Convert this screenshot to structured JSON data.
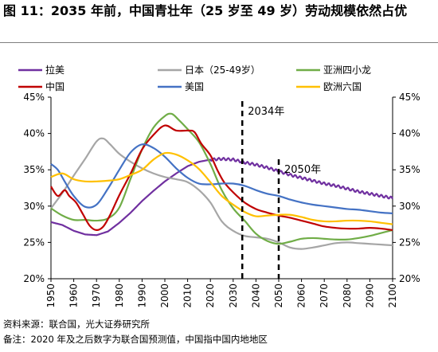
{
  "title": "图 11：2035 年前，中国青壮年（25 岁至 49 岁）劳动规模依然占优",
  "source": "资料来源：联合国，光大证券研究所",
  "note": "备注：2020 年及之后数字为联合国预测值，中国指中国内地地区",
  "colors": {
    "latin_america": "#7030a0",
    "japan": "#a6a6a6",
    "asia_four_dragons": "#70ad47",
    "china": "#c00000",
    "usa": "#4472c4",
    "euro_six": "#ffc000"
  },
  "chart_data": {
    "type": "line",
    "xlabel": "",
    "ylabel": "",
    "xlim": [
      1950,
      2100
    ],
    "ylim": [
      0.2,
      0.45
    ],
    "x_ticks": [
      "1950",
      "1960",
      "1970",
      "1980",
      "1990",
      "2000",
      "2010",
      "2020",
      "2030",
      "2040",
      "2050",
      "2060",
      "2070",
      "2080",
      "2090",
      "2100"
    ],
    "y_ticks_left": [
      "45%",
      "40%",
      "35%",
      "30%",
      "25%",
      "20%"
    ],
    "y_ticks_right": [
      "45%",
      "40%",
      "35%",
      "30%",
      "25%",
      "20%"
    ],
    "legend_position": "top",
    "annotations": [
      {
        "label": "2034年",
        "x": 2034,
        "style": "dashed-vertical"
      },
      {
        "label": "2050年",
        "x": 2050,
        "style": "dashed-vertical"
      }
    ],
    "series": [
      {
        "name": "拉美",
        "key": "latin_america",
        "points": [
          [
            1950,
            0.278
          ],
          [
            1955,
            0.274
          ],
          [
            1960,
            0.266
          ],
          [
            1965,
            0.261
          ],
          [
            1970,
            0.26
          ],
          [
            1975,
            0.265
          ],
          [
            1980,
            0.277
          ],
          [
            1985,
            0.291
          ],
          [
            1990,
            0.307
          ],
          [
            1995,
            0.321
          ],
          [
            2000,
            0.334
          ],
          [
            2005,
            0.345
          ],
          [
            2010,
            0.355
          ],
          [
            2015,
            0.361
          ],
          [
            2020,
            0.364
          ],
          [
            2025,
            0.365
          ],
          [
            2030,
            0.364
          ],
          [
            2035,
            0.36
          ],
          [
            2040,
            0.357
          ],
          [
            2045,
            0.353
          ],
          [
            2050,
            0.348
          ],
          [
            2055,
            0.343
          ],
          [
            2060,
            0.339
          ],
          [
            2065,
            0.335
          ],
          [
            2070,
            0.331
          ],
          [
            2075,
            0.328
          ],
          [
            2080,
            0.324
          ],
          [
            2085,
            0.32
          ],
          [
            2090,
            0.317
          ],
          [
            2095,
            0.314
          ],
          [
            2100,
            0.311
          ]
        ]
      },
      {
        "name": "日本（25-49岁）",
        "key": "japan",
        "points": [
          [
            1950,
            0.297
          ],
          [
            1955,
            0.318
          ],
          [
            1960,
            0.342
          ],
          [
            1965,
            0.365
          ],
          [
            1970,
            0.389
          ],
          [
            1973,
            0.393
          ],
          [
            1976,
            0.385
          ],
          [
            1980,
            0.372
          ],
          [
            1985,
            0.361
          ],
          [
            1990,
            0.352
          ],
          [
            1995,
            0.345
          ],
          [
            2000,
            0.34
          ],
          [
            2005,
            0.337
          ],
          [
            2010,
            0.333
          ],
          [
            2015,
            0.322
          ],
          [
            2020,
            0.305
          ],
          [
            2025,
            0.279
          ],
          [
            2030,
            0.266
          ],
          [
            2035,
            0.259
          ],
          [
            2040,
            0.257
          ],
          [
            2045,
            0.255
          ],
          [
            2050,
            0.25
          ],
          [
            2055,
            0.243
          ],
          [
            2060,
            0.241
          ],
          [
            2065,
            0.243
          ],
          [
            2070,
            0.246
          ],
          [
            2075,
            0.249
          ],
          [
            2080,
            0.25
          ],
          [
            2085,
            0.249
          ],
          [
            2090,
            0.248
          ],
          [
            2095,
            0.247
          ],
          [
            2100,
            0.246
          ]
        ]
      },
      {
        "name": "亚洲四小龙",
        "key": "asia_four_dragons",
        "points": [
          [
            1950,
            0.297
          ],
          [
            1955,
            0.287
          ],
          [
            1960,
            0.281
          ],
          [
            1965,
            0.281
          ],
          [
            1970,
            0.28
          ],
          [
            1975,
            0.283
          ],
          [
            1980,
            0.298
          ],
          [
            1985,
            0.338
          ],
          [
            1990,
            0.378
          ],
          [
            1995,
            0.408
          ],
          [
            2000,
            0.424
          ],
          [
            2003,
            0.427
          ],
          [
            2006,
            0.419
          ],
          [
            2010,
            0.406
          ],
          [
            2015,
            0.388
          ],
          [
            2020,
            0.358
          ],
          [
            2025,
            0.322
          ],
          [
            2030,
            0.297
          ],
          [
            2035,
            0.28
          ],
          [
            2040,
            0.262
          ],
          [
            2045,
            0.252
          ],
          [
            2050,
            0.248
          ],
          [
            2055,
            0.251
          ],
          [
            2060,
            0.255
          ],
          [
            2065,
            0.256
          ],
          [
            2070,
            0.255
          ],
          [
            2075,
            0.254
          ],
          [
            2080,
            0.254
          ],
          [
            2085,
            0.256
          ],
          [
            2090,
            0.259
          ],
          [
            2095,
            0.263
          ],
          [
            2100,
            0.267
          ]
        ]
      },
      {
        "name": "中国",
        "key": "china",
        "points": [
          [
            1950,
            0.327
          ],
          [
            1953,
            0.314
          ],
          [
            1956,
            0.322
          ],
          [
            1958,
            0.314
          ],
          [
            1961,
            0.305
          ],
          [
            1964,
            0.289
          ],
          [
            1967,
            0.273
          ],
          [
            1970,
            0.267
          ],
          [
            1973,
            0.272
          ],
          [
            1976,
            0.288
          ],
          [
            1980,
            0.315
          ],
          [
            1985,
            0.345
          ],
          [
            1990,
            0.378
          ],
          [
            1995,
            0.398
          ],
          [
            2000,
            0.411
          ],
          [
            2005,
            0.404
          ],
          [
            2010,
            0.404
          ],
          [
            2013,
            0.402
          ],
          [
            2016,
            0.386
          ],
          [
            2020,
            0.37
          ],
          [
            2023,
            0.35
          ],
          [
            2026,
            0.333
          ],
          [
            2030,
            0.319
          ],
          [
            2035,
            0.305
          ],
          [
            2040,
            0.296
          ],
          [
            2045,
            0.291
          ],
          [
            2050,
            0.287
          ],
          [
            2055,
            0.284
          ],
          [
            2060,
            0.28
          ],
          [
            2065,
            0.276
          ],
          [
            2070,
            0.272
          ],
          [
            2075,
            0.27
          ],
          [
            2080,
            0.269
          ],
          [
            2085,
            0.269
          ],
          [
            2090,
            0.27
          ],
          [
            2095,
            0.269
          ],
          [
            2100,
            0.267
          ]
        ]
      },
      {
        "name": "美国",
        "key": "usa",
        "points": [
          [
            1950,
            0.358
          ],
          [
            1953,
            0.35
          ],
          [
            1956,
            0.334
          ],
          [
            1960,
            0.314
          ],
          [
            1965,
            0.299
          ],
          [
            1970,
            0.302
          ],
          [
            1975,
            0.324
          ],
          [
            1980,
            0.35
          ],
          [
            1985,
            0.374
          ],
          [
            1990,
            0.385
          ],
          [
            1995,
            0.38
          ],
          [
            2000,
            0.368
          ],
          [
            2005,
            0.352
          ],
          [
            2010,
            0.339
          ],
          [
            2015,
            0.331
          ],
          [
            2020,
            0.33
          ],
          [
            2025,
            0.331
          ],
          [
            2030,
            0.331
          ],
          [
            2035,
            0.328
          ],
          [
            2040,
            0.322
          ],
          [
            2045,
            0.317
          ],
          [
            2050,
            0.314
          ],
          [
            2055,
            0.309
          ],
          [
            2060,
            0.305
          ],
          [
            2065,
            0.302
          ],
          [
            2070,
            0.3
          ],
          [
            2075,
            0.298
          ],
          [
            2080,
            0.296
          ],
          [
            2085,
            0.295
          ],
          [
            2090,
            0.293
          ],
          [
            2095,
            0.291
          ],
          [
            2100,
            0.29
          ]
        ]
      },
      {
        "name": "欧洲六国",
        "key": "euro_six",
        "points": [
          [
            1950,
            0.34
          ],
          [
            1955,
            0.345
          ],
          [
            1960,
            0.337
          ],
          [
            1965,
            0.334
          ],
          [
            1970,
            0.334
          ],
          [
            1975,
            0.335
          ],
          [
            1980,
            0.337
          ],
          [
            1985,
            0.343
          ],
          [
            1990,
            0.35
          ],
          [
            1995,
            0.364
          ],
          [
            2000,
            0.373
          ],
          [
            2005,
            0.371
          ],
          [
            2010,
            0.363
          ],
          [
            2015,
            0.351
          ],
          [
            2020,
            0.333
          ],
          [
            2025,
            0.314
          ],
          [
            2030,
            0.302
          ],
          [
            2035,
            0.292
          ],
          [
            2040,
            0.286
          ],
          [
            2045,
            0.287
          ],
          [
            2050,
            0.288
          ],
          [
            2055,
            0.288
          ],
          [
            2060,
            0.285
          ],
          [
            2065,
            0.281
          ],
          [
            2070,
            0.279
          ],
          [
            2075,
            0.279
          ],
          [
            2080,
            0.28
          ],
          [
            2085,
            0.28
          ],
          [
            2090,
            0.279
          ],
          [
            2095,
            0.277
          ],
          [
            2100,
            0.275
          ]
        ]
      }
    ]
  }
}
